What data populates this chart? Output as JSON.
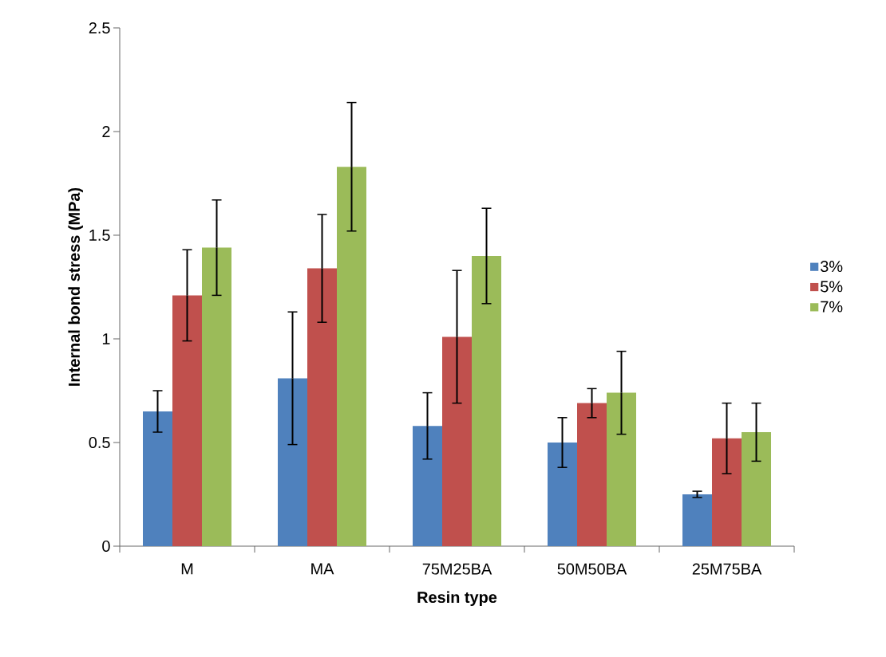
{
  "chart_data": {
    "type": "bar",
    "xlabel": "Resin type",
    "ylabel": "Internal bond stress (MPa)",
    "categories": [
      "M",
      "MA",
      "75M25BA",
      "50M50BA",
      "25M75BA"
    ],
    "series": [
      {
        "name": "3%",
        "color": "#4f81bd",
        "values": [
          0.65,
          0.81,
          0.58,
          0.5,
          0.25
        ],
        "errors": [
          0.1,
          0.32,
          0.16,
          0.12,
          0.015
        ]
      },
      {
        "name": "5%",
        "color": "#c0504d",
        "values": [
          1.21,
          1.34,
          1.01,
          0.69,
          0.52
        ],
        "errors": [
          0.22,
          0.26,
          0.32,
          0.07,
          0.17
        ]
      },
      {
        "name": "7%",
        "color": "#9bbb59",
        "values": [
          1.44,
          1.83,
          1.4,
          0.74,
          0.55
        ],
        "errors": [
          0.23,
          0.31,
          0.23,
          0.2,
          0.14
        ]
      }
    ],
    "ylim": [
      0,
      2.5
    ],
    "yticks": [
      0,
      0.5,
      1,
      1.5,
      2,
      2.5
    ],
    "grid": false,
    "legend": "right"
  }
}
